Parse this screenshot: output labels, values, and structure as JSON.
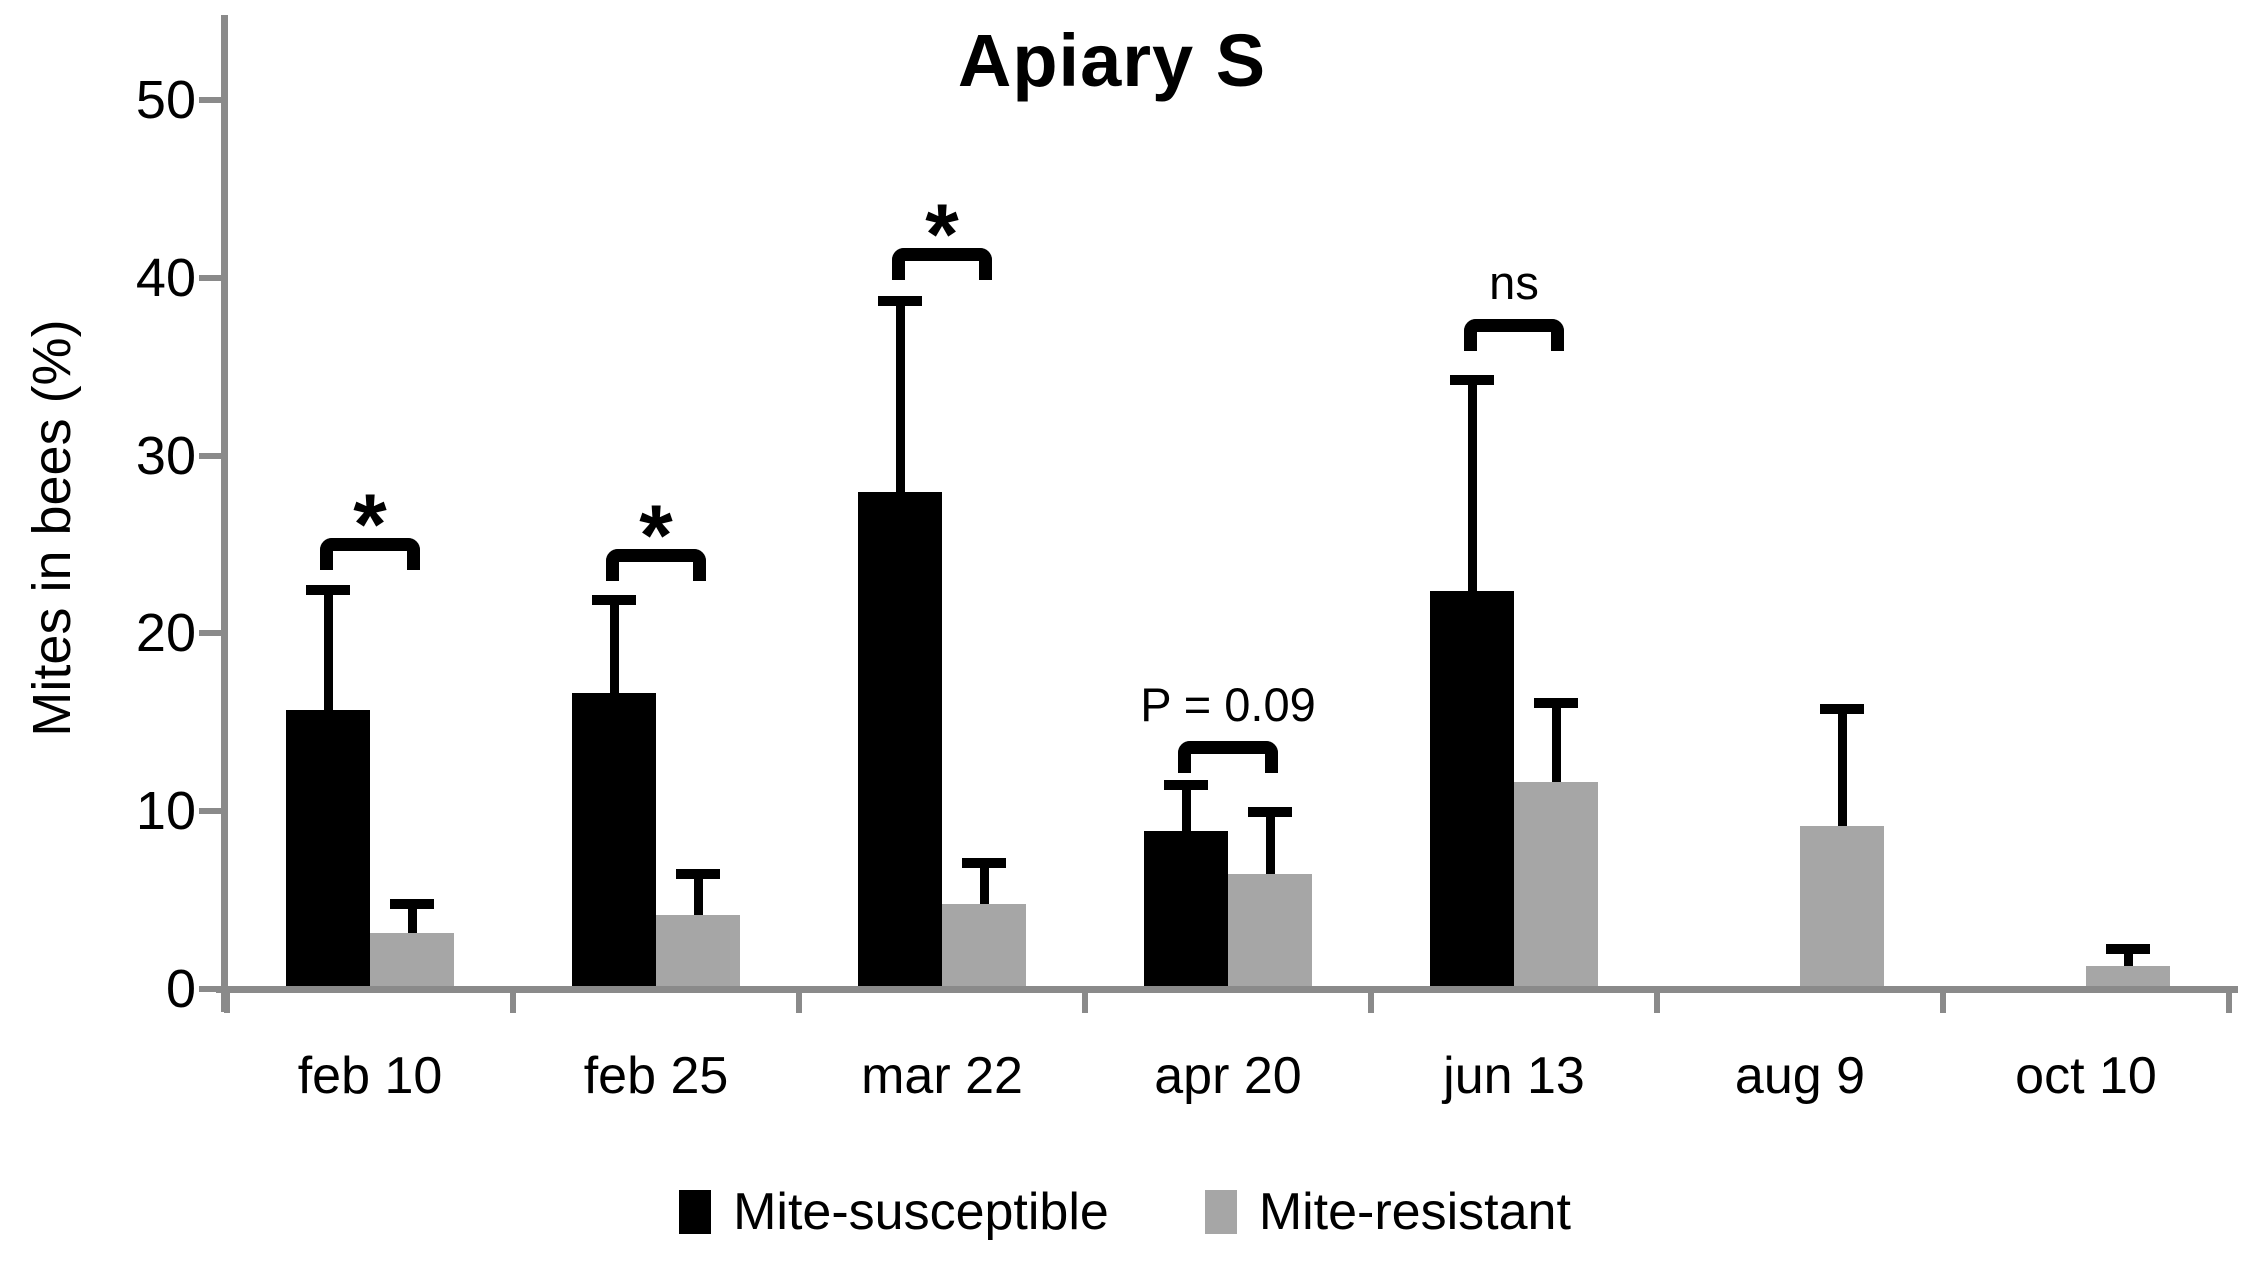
{
  "title": "Apiary S",
  "y_axis": {
    "label": "Mites in bees (%)",
    "tick_labels": [
      "0",
      "10",
      "20",
      "30",
      "40",
      "50"
    ]
  },
  "legend": {
    "items": [
      {
        "label": "Mite-susceptible",
        "color": "#000000"
      },
      {
        "label": "Mite-resistant",
        "color": "#a6a6a6"
      }
    ]
  },
  "colors": {
    "bar_black": "#000000",
    "bar_gray": "#a6a6a6",
    "axis": "#8a8a8a",
    "error_bar": "#000000"
  },
  "chart_data": {
    "type": "bar",
    "title": "Apiary S",
    "xlabel": "",
    "ylabel": "Mites in bees (%)",
    "ylim": [
      0,
      55
    ],
    "yticks": [
      0,
      10,
      20,
      30,
      40,
      50
    ],
    "grid": false,
    "legend_position": "bottom",
    "categories": [
      "feb 10",
      "feb 25",
      "mar 22",
      "apr 20",
      "jun 13",
      "aug 9",
      "oct 10"
    ],
    "series": [
      {
        "name": "Mite-susceptible",
        "color": "#000000",
        "values": [
          15.5,
          16.5,
          27.8,
          8.7,
          22.2,
          0,
          0
        ],
        "errors": [
          6.8,
          5.2,
          10.7,
          2.6,
          11.9,
          0,
          0
        ]
      },
      {
        "name": "Mite-resistant",
        "color": "#a6a6a6",
        "values": [
          3.0,
          4.0,
          4.6,
          6.3,
          11.5,
          9.0,
          1.1
        ],
        "errors": [
          1.6,
          2.3,
          2.3,
          3.5,
          4.4,
          6.6,
          1.0
        ]
      }
    ],
    "annotations": [
      {
        "category": "feb 10",
        "text": "*",
        "style": "asterisk",
        "bracket_y": 25.2
      },
      {
        "category": "feb 25",
        "text": "*",
        "style": "asterisk",
        "bracket_y": 24.6
      },
      {
        "category": "mar 22",
        "text": "*",
        "style": "asterisk",
        "bracket_y": 41.5
      },
      {
        "category": "apr 20",
        "text": "P = 0.09",
        "style": "text",
        "bracket_y": 13.8
      },
      {
        "category": "jun 13",
        "text": "ns",
        "style": "text",
        "bracket_y": 37.5
      }
    ]
  }
}
